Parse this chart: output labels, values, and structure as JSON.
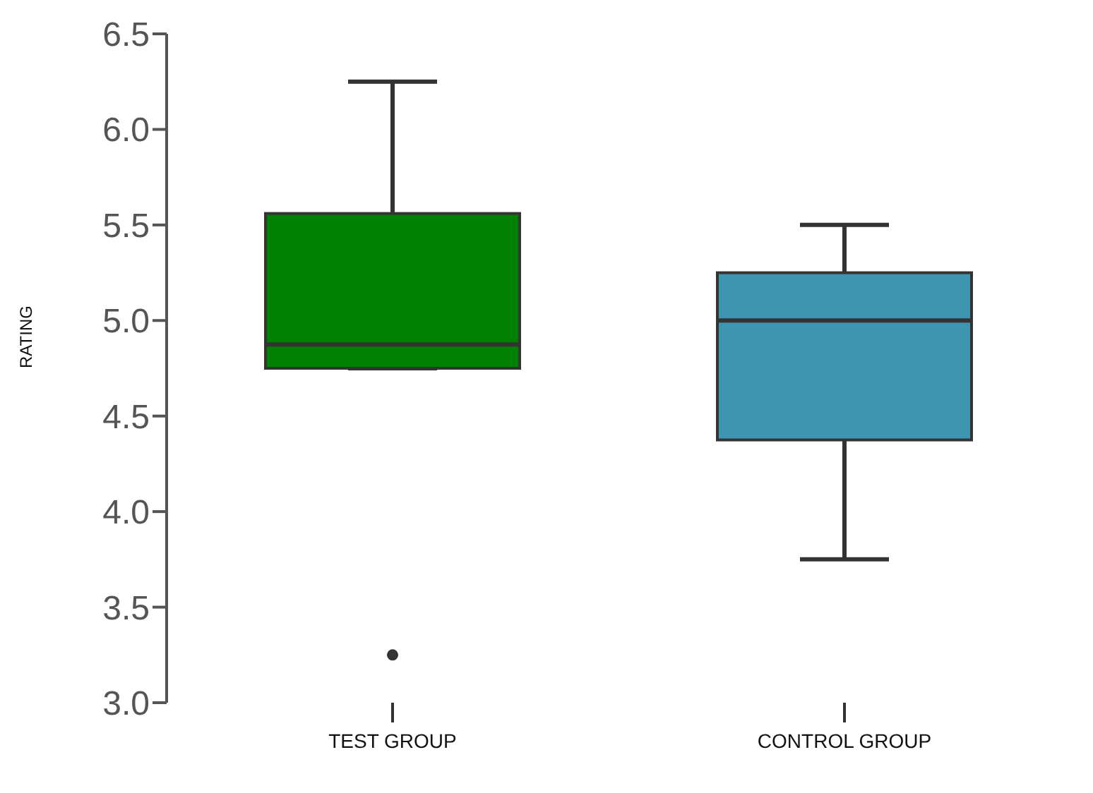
{
  "chart_data": {
    "type": "box",
    "ylabel": "RATING",
    "categories": [
      "TEST GROUP",
      "CONTROL GROUP"
    ],
    "colors": [
      "#008000",
      "#3d95b0"
    ],
    "boxes": [
      {
        "low": 4.75,
        "q1": 4.75,
        "median": 4.875,
        "q3": 5.56,
        "high": 6.25,
        "outliers": [
          3.25
        ]
      },
      {
        "low": 3.75,
        "q1": 4.375,
        "median": 5.0,
        "q3": 5.25,
        "high": 5.5
      }
    ],
    "ylim": [
      3.0,
      6.5
    ],
    "yticks": [
      {
        "value": 3,
        "label": "3.0"
      },
      3.5,
      {
        "value": 4,
        "label": "4.0"
      },
      4.5,
      {
        "value": 5,
        "label": "5.0"
      },
      5.5,
      {
        "value": 6,
        "label": "6.0"
      },
      6.5
    ],
    "grid": false
  }
}
